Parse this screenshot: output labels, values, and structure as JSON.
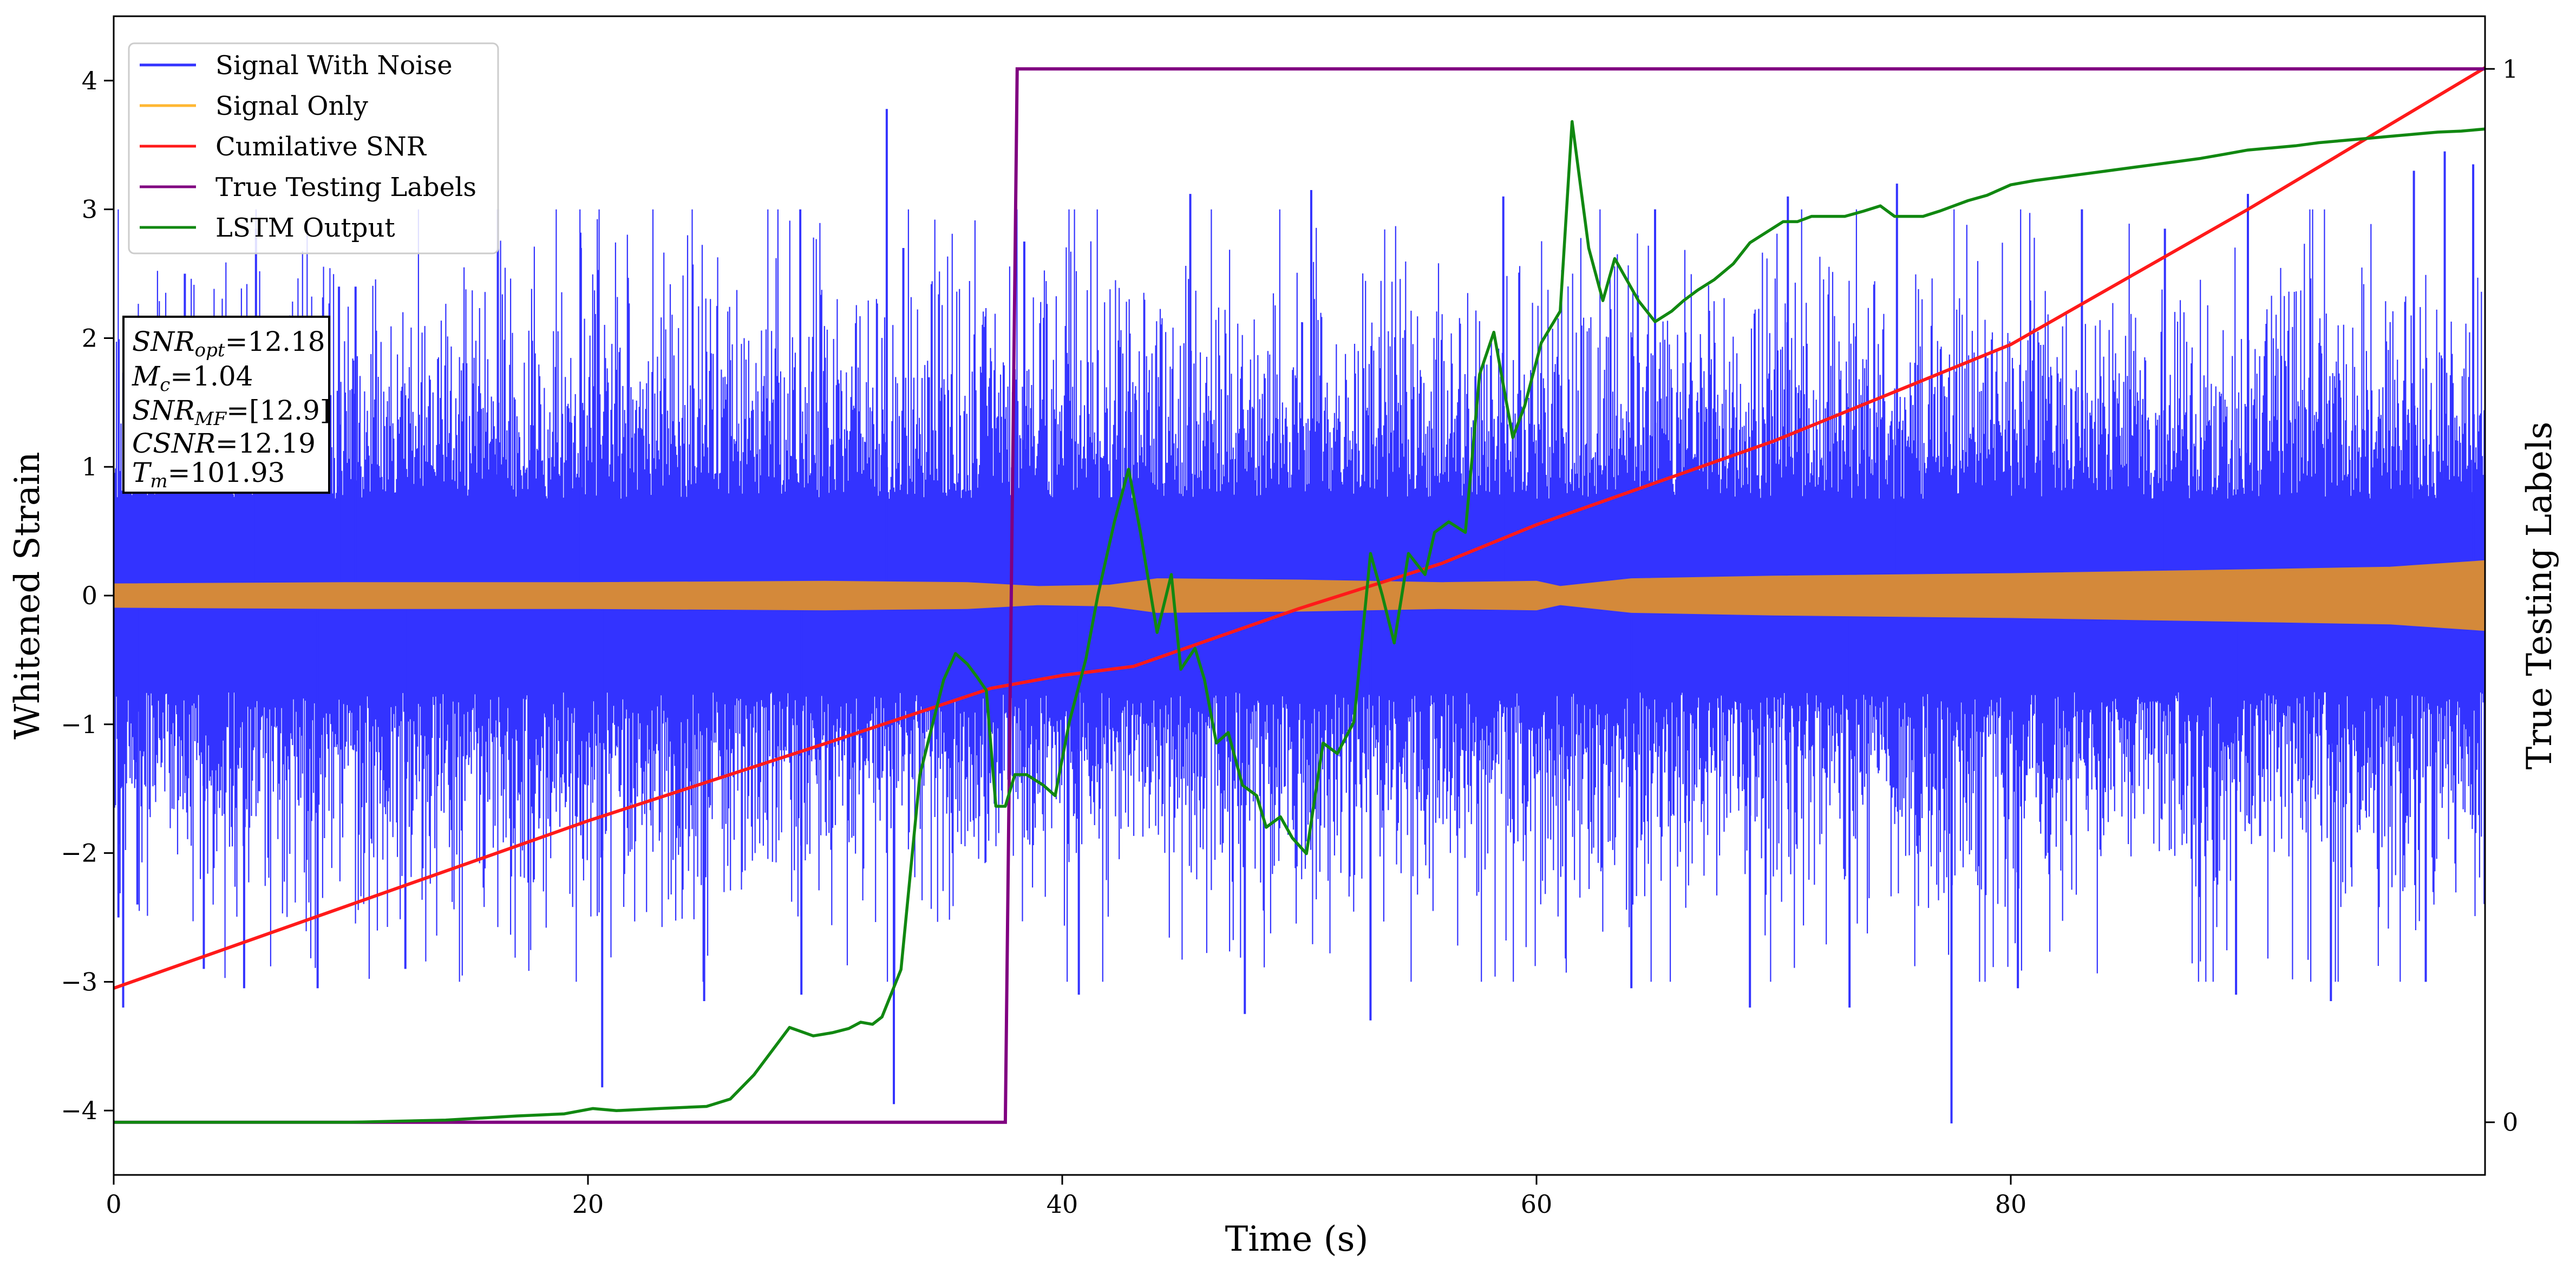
{
  "chart_data": {
    "type": "line",
    "xlabel": "Time (s)",
    "ylabel": "Whitened Strain",
    "y2label": "True Testing Labels",
    "xlim": [
      0,
      100
    ],
    "ylim": [
      -4.5,
      4.5
    ],
    "y2lim": [
      -0.05,
      1.05
    ],
    "xticks": [
      "0",
      "20",
      "40",
      "60",
      "80"
    ],
    "xtick_values": [
      0,
      20,
      40,
      60,
      80
    ],
    "yticks": [
      "4",
      "3",
      "2",
      "1",
      "0",
      "−1",
      "−2",
      "−3",
      "−4"
    ],
    "ytick_values": [
      4,
      3,
      2,
      1,
      0,
      -1,
      -2,
      -3,
      -4
    ],
    "y2ticks": [
      "1",
      "0"
    ],
    "y2tick_values": [
      1,
      0
    ],
    "grid": false,
    "legend_position": "top-left",
    "legend": [
      "Signal With Noise",
      "Signal Only",
      "Cumilative SNR",
      "True Testing Labels",
      "LSTM Output"
    ],
    "info_box": {
      "snr_opt": {
        "base": "SNR",
        "sub": "opt",
        "value": "=12.18"
      },
      "mc": {
        "base": "M",
        "sub": "c",
        "value": "=1.04"
      },
      "snr_mf": {
        "base": "SNR",
        "sub": "MF",
        "value": "=[12.9]"
      },
      "csnr": {
        "base": "CSNR",
        "value": "=12.19"
      },
      "tm": {
        "base": "T",
        "sub": "m",
        "value": "=101.93"
      }
    },
    "colors": {
      "signal_with_noise": "#3333ff",
      "signal_only": "#d4893a",
      "signal_only_legend": "#ffb732",
      "cumulative_snr": "#ff1a1a",
      "true_labels": "#800080",
      "lstm_output": "#118811"
    },
    "series": [
      {
        "name": "Signal With Noise",
        "axis": "left",
        "style": "dense-noise",
        "core_band": [
          -0.75,
          0.75
        ],
        "typical_envelope": [
          -2.2,
          2.4
        ],
        "spikes": [
          {
            "x": 0.2,
            "y": -2.5
          },
          {
            "x": 0.4,
            "y": -3.2
          },
          {
            "x": 1.0,
            "y": -2.4
          },
          {
            "x": 3.0,
            "y": 2.5
          },
          {
            "x": 3.8,
            "y": -2.9
          },
          {
            "x": 5.5,
            "y": -3.05
          },
          {
            "x": 6.0,
            "y": 2.85
          },
          {
            "x": 8.6,
            "y": -3.05
          },
          {
            "x": 9.5,
            "y": 2.4
          },
          {
            "x": 10.2,
            "y": 2.4
          },
          {
            "x": 12.3,
            "y": -2.9
          },
          {
            "x": 16.2,
            "y": 3.0
          },
          {
            "x": 19.7,
            "y": 2.7
          },
          {
            "x": 20.6,
            "y": -3.82
          },
          {
            "x": 24.9,
            "y": -3.15
          },
          {
            "x": 29.0,
            "y": -3.1
          },
          {
            "x": 32.6,
            "y": 3.78
          },
          {
            "x": 32.9,
            "y": -3.95
          },
          {
            "x": 33.3,
            "y": 2.7
          },
          {
            "x": 38.4,
            "y": 2.75
          },
          {
            "x": 40.7,
            "y": -3.1
          },
          {
            "x": 45.4,
            "y": 3.12
          },
          {
            "x": 47.7,
            "y": -3.25
          },
          {
            "x": 50.5,
            "y": 3.15
          },
          {
            "x": 53.0,
            "y": -3.3
          },
          {
            "x": 58.6,
            "y": 3.1
          },
          {
            "x": 64.0,
            "y": -3.05
          },
          {
            "x": 65.0,
            "y": 3.0
          },
          {
            "x": 69.0,
            "y": -3.2
          },
          {
            "x": 70.6,
            "y": 3.1
          },
          {
            "x": 73.2,
            "y": -3.2
          },
          {
            "x": 75.2,
            "y": 3.2
          },
          {
            "x": 77.5,
            "y": -4.1
          },
          {
            "x": 80.3,
            "y": -3.05
          },
          {
            "x": 83.0,
            "y": 3.0
          },
          {
            "x": 86.5,
            "y": 2.85
          },
          {
            "x": 89.5,
            "y": -3.1
          },
          {
            "x": 90.0,
            "y": 3.12
          },
          {
            "x": 93.5,
            "y": -3.15
          },
          {
            "x": 97.0,
            "y": 3.3
          },
          {
            "x": 97.5,
            "y": -3.0
          },
          {
            "x": 98.3,
            "y": 3.45
          },
          {
            "x": 99.5,
            "y": 3.35
          }
        ]
      },
      {
        "name": "Signal Only",
        "axis": "left",
        "style": "filled-band",
        "envelope": [
          [
            0,
            0.09
          ],
          [
            10,
            0.1
          ],
          [
            20,
            0.1
          ],
          [
            30,
            0.11
          ],
          [
            36,
            0.1
          ],
          [
            39,
            0.07
          ],
          [
            42,
            0.08
          ],
          [
            44,
            0.13
          ],
          [
            50,
            0.12
          ],
          [
            56,
            0.1
          ],
          [
            60,
            0.11
          ],
          [
            61,
            0.07
          ],
          [
            64,
            0.13
          ],
          [
            70,
            0.15
          ],
          [
            80,
            0.17
          ],
          [
            90,
            0.2
          ],
          [
            96,
            0.22
          ],
          [
            100,
            0.27
          ]
        ]
      },
      {
        "name": "Cumilative SNR",
        "axis": "left",
        "x": [
          0,
          10,
          20,
          30,
          37,
          40,
          43,
          50,
          56,
          60,
          70,
          80,
          90,
          100
        ],
        "y": [
          -3.05,
          -2.4,
          -1.75,
          -1.15,
          -0.72,
          -0.62,
          -0.55,
          -0.1,
          0.25,
          0.55,
          1.2,
          1.95,
          3.0,
          4.1
        ]
      },
      {
        "name": "True Testing Labels",
        "axis": "right",
        "x": [
          0,
          37.6,
          38.1,
          100
        ],
        "y": [
          0,
          0,
          1,
          1
        ]
      },
      {
        "name": "LSTM Output",
        "axis": "right",
        "x": [
          0,
          10,
          14,
          17,
          19,
          20.2,
          21.2,
          23,
          25,
          26,
          27,
          28.5,
          29.5,
          30.3,
          31,
          31.5,
          32,
          32.4,
          33.2,
          34,
          35,
          35.5,
          36,
          36.4,
          36.8,
          37.2,
          37.6,
          38,
          38.5,
          39.2,
          39.7,
          40.3,
          41,
          41.5,
          42.2,
          42.8,
          43.3,
          44,
          44.6,
          45,
          45.6,
          46,
          46.5,
          47,
          47.6,
          48.2,
          48.6,
          49.2,
          49.7,
          50.3,
          51,
          51.6,
          52.3,
          53,
          53.5,
          54,
          54.6,
          55.3,
          55.7,
          56.3,
          57,
          57.6,
          58.2,
          59,
          59.5,
          60.2,
          61,
          61.5,
          62.2,
          62.8,
          63.3,
          63.8,
          64.3,
          65,
          65.7,
          66.2,
          66.8,
          67.5,
          68.3,
          69,
          69.7,
          70.4,
          71,
          71.6,
          72.3,
          73,
          73.8,
          74.5,
          75.1,
          75.7,
          76.3,
          77,
          77.6,
          78.2,
          79,
          80,
          81,
          82,
          83,
          84,
          85,
          86,
          87,
          88,
          89,
          90,
          91,
          92,
          93,
          94,
          95,
          96,
          97,
          98,
          99,
          100
        ],
        "y": [
          0.0,
          0.0,
          0.002,
          0.006,
          0.008,
          0.013,
          0.011,
          0.013,
          0.015,
          0.022,
          0.045,
          0.09,
          0.082,
          0.085,
          0.089,
          0.095,
          0.093,
          0.1,
          0.145,
          0.33,
          0.42,
          0.445,
          0.435,
          0.423,
          0.41,
          0.3,
          0.3,
          0.33,
          0.33,
          0.32,
          0.31,
          0.38,
          0.44,
          0.5,
          0.57,
          0.62,
          0.56,
          0.465,
          0.52,
          0.43,
          0.45,
          0.42,
          0.36,
          0.37,
          0.32,
          0.31,
          0.28,
          0.29,
          0.27,
          0.255,
          0.36,
          0.35,
          0.38,
          0.54,
          0.5,
          0.455,
          0.54,
          0.52,
          0.56,
          0.57,
          0.56,
          0.71,
          0.75,
          0.65,
          0.68,
          0.74,
          0.77,
          0.95,
          0.83,
          0.78,
          0.82,
          0.8,
          0.78,
          0.76,
          0.77,
          0.78,
          0.79,
          0.8,
          0.815,
          0.835,
          0.845,
          0.855,
          0.855,
          0.86,
          0.86,
          0.86,
          0.865,
          0.87,
          0.86,
          0.86,
          0.86,
          0.865,
          0.87,
          0.875,
          0.88,
          0.89,
          0.894,
          0.897,
          0.9,
          0.903,
          0.906,
          0.909,
          0.912,
          0.915,
          0.919,
          0.923,
          0.925,
          0.927,
          0.93,
          0.932,
          0.934,
          0.936,
          0.938,
          0.94,
          0.941,
          0.943
        ]
      }
    ]
  }
}
